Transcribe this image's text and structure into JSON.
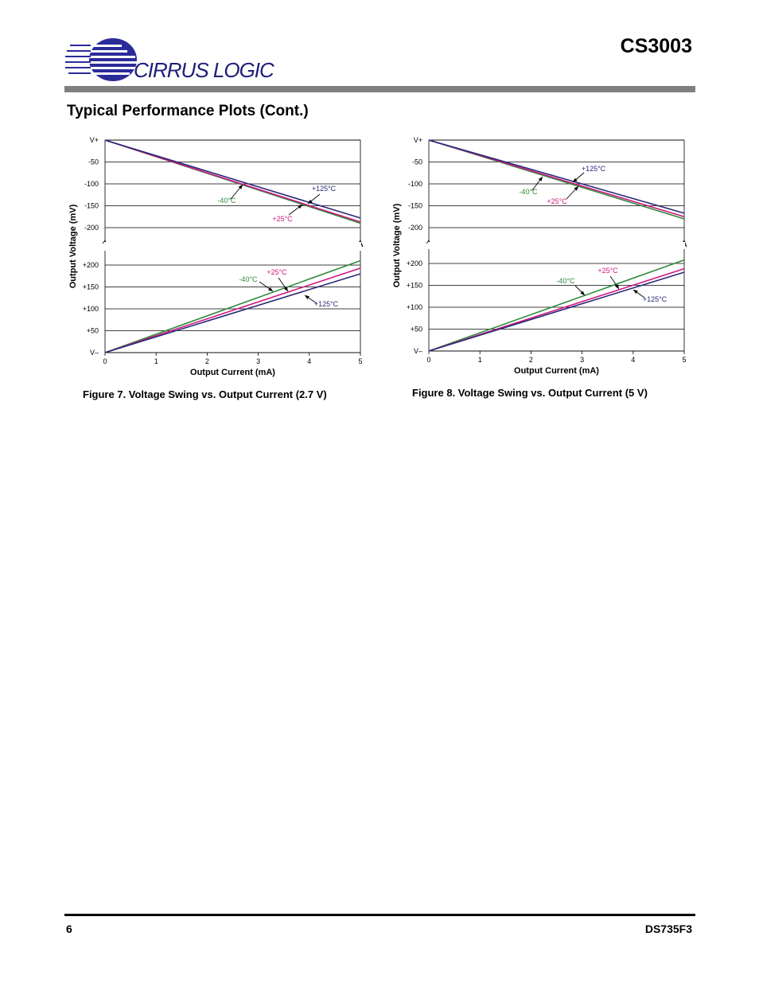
{
  "header": {
    "logo_text": "CIRRUS LOGIC",
    "doc_title": "CS3003"
  },
  "section_title": "Typical Performance Plots (Cont.)",
  "colors": {
    "green": "#2e8b3a",
    "magenta": "#d0167e",
    "navy": "#2a2a7a",
    "grid": "#000000",
    "logo_blue": "#2b2b9a"
  },
  "chart_data": [
    {
      "type": "line",
      "caption": "Figure 7.  Voltage Swing vs. Output Current (2.7 V)",
      "xlabel": "Output Current (mA)",
      "ylabel": "Output Voltage (mV)",
      "xlim": [
        0,
        5
      ],
      "x_ticks": [
        "0",
        "1",
        "2",
        "3",
        "4",
        "5"
      ],
      "top_panel": {
        "ylim": [
          -200,
          0
        ],
        "y_ticks": [
          "V+",
          "-50",
          "-100",
          "-150",
          "-200"
        ],
        "series": [
          {
            "name": "-40°C",
            "x": [
              0,
              5
            ],
            "y": [
              0,
              -190
            ]
          },
          {
            "name": "+25°C",
            "x": [
              0,
              5
            ],
            "y": [
              0,
              -187
            ]
          },
          {
            "name": "+125°C",
            "x": [
              0,
              5
            ],
            "y": [
              0,
              -178
            ]
          }
        ]
      },
      "bottom_panel": {
        "ylim": [
          0,
          200
        ],
        "y_ticks": [
          "+200",
          "+150",
          "+100",
          "+50",
          "V–"
        ],
        "series": [
          {
            "name": "-40°C",
            "x": [
              0,
              5
            ],
            "y": [
              0,
              210
            ]
          },
          {
            "name": "+25°C",
            "x": [
              0,
              5
            ],
            "y": [
              0,
              193
            ]
          },
          {
            "name": "+125°C",
            "x": [
              0,
              5
            ],
            "y": [
              0,
              180
            ]
          }
        ]
      },
      "annotations": [
        {
          "text": "+125°C",
          "panel": "top"
        },
        {
          "text": "-40°C",
          "panel": "top"
        },
        {
          "text": "+25°C",
          "panel": "top"
        },
        {
          "text": "-40°C",
          "panel": "bottom"
        },
        {
          "text": "+25°C",
          "panel": "bottom"
        },
        {
          "text": "+125°C",
          "panel": "bottom"
        }
      ]
    },
    {
      "type": "line",
      "caption": "Figure 8.  Voltage Swing vs. Output Current (5 V)",
      "xlabel": "Output Current (mA)",
      "ylabel": "Output Voltage (mV)",
      "xlim": [
        0,
        5
      ],
      "x_ticks": [
        "0",
        "1",
        "2",
        "3",
        "4",
        "5"
      ],
      "top_panel": {
        "ylim": [
          -200,
          0
        ],
        "y_ticks": [
          "V+",
          "-50",
          "-100",
          "-150",
          "-200"
        ],
        "series": [
          {
            "name": "-40°C",
            "x": [
              0,
              5
            ],
            "y": [
              0,
              -180
            ]
          },
          {
            "name": "+25°C",
            "x": [
              0,
              5
            ],
            "y": [
              0,
              -175
            ]
          },
          {
            "name": "+125°C",
            "x": [
              0,
              5
            ],
            "y": [
              0,
              -167
            ]
          }
        ]
      },
      "bottom_panel": {
        "ylim": [
          0,
          200
        ],
        "y_ticks": [
          "+200",
          "+150",
          "+100",
          "+50",
          "V–"
        ],
        "series": [
          {
            "name": "-40°C",
            "x": [
              0,
              5
            ],
            "y": [
              0,
              208
            ]
          },
          {
            "name": "+25°C",
            "x": [
              0,
              5
            ],
            "y": [
              0,
              188
            ]
          },
          {
            "name": "+125°C",
            "x": [
              0,
              5
            ],
            "y": [
              0,
              180
            ]
          }
        ]
      },
      "annotations": [
        {
          "text": "+125°C",
          "panel": "top"
        },
        {
          "text": "-40°C",
          "panel": "top"
        },
        {
          "text": "+25°C",
          "panel": "top"
        },
        {
          "text": "+25°C",
          "panel": "bottom"
        },
        {
          "text": "-40°C",
          "panel": "bottom"
        },
        {
          "text": "+125°C",
          "panel": "bottom"
        }
      ]
    }
  ],
  "footer": {
    "page_number": "6",
    "doc_id": "DS735F3"
  }
}
